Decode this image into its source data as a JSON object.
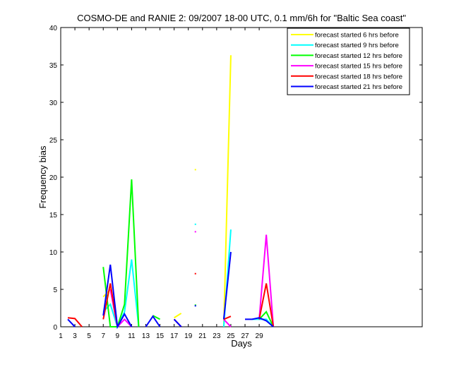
{
  "chart_data": {
    "type": "line",
    "title": "COSMO-DE and RANIE 2: 09/2007 18-00 UTC, 0.1 mm/6h for \"Baltic Sea coast\"",
    "xlabel": "Days",
    "ylabel": "Frequency bias",
    "xlim": [
      1,
      52
    ],
    "ylim": [
      0,
      40
    ],
    "xticks": [
      1,
      3,
      5,
      7,
      9,
      11,
      13,
      15,
      17,
      19,
      21,
      23,
      25,
      27,
      29
    ],
    "yticks": [
      0,
      5,
      10,
      15,
      20,
      25,
      30,
      35,
      40
    ],
    "grid": false,
    "legend_position": "top-right",
    "series": [
      {
        "name": "forecast started 6 hrs before",
        "color": "#ffff00",
        "points": [
          [
            7,
            4
          ],
          [
            8,
            5
          ],
          [
            9,
            0
          ],
          null,
          [
            17,
            1.2
          ],
          [
            18,
            1.8
          ],
          null,
          [
            20,
            21
          ],
          null,
          [
            24,
            0
          ],
          [
            25,
            36.3
          ]
        ]
      },
      {
        "name": "forecast started 9 hrs before",
        "color": "#00ffff",
        "points": [
          [
            7,
            2
          ],
          [
            8,
            3
          ],
          [
            9,
            0
          ],
          [
            10,
            2
          ],
          [
            11,
            9
          ],
          [
            12,
            0
          ],
          null,
          [
            20,
            13.7
          ],
          null,
          [
            24,
            0
          ],
          [
            25,
            13
          ],
          null,
          [
            28,
            1
          ],
          [
            29,
            1
          ],
          [
            30,
            1
          ],
          [
            31,
            0
          ]
        ]
      },
      {
        "name": "forecast started 12 hrs before",
        "color": "#00ff00",
        "points": [
          [
            7,
            8
          ],
          [
            8,
            0
          ],
          [
            9,
            0
          ],
          [
            10,
            3
          ],
          [
            11,
            19.7
          ],
          [
            12,
            0
          ],
          null,
          [
            14,
            1.5
          ],
          [
            15,
            1
          ],
          null,
          [
            20,
            2.9
          ],
          null,
          [
            29,
            1
          ],
          [
            30,
            2
          ],
          [
            31,
            0
          ]
        ]
      },
      {
        "name": "forecast started 15 hrs before",
        "color": "#ff00ff",
        "points": [
          [
            8,
            5
          ],
          [
            9,
            0
          ],
          [
            10,
            1
          ],
          [
            11,
            0
          ],
          null,
          [
            20,
            12.7
          ],
          null,
          [
            24,
            1
          ],
          [
            25,
            0
          ],
          null,
          [
            29,
            1
          ],
          [
            30,
            12.3
          ],
          [
            31,
            0
          ]
        ]
      },
      {
        "name": "forecast started 18 hrs before",
        "color": "#ff0000",
        "points": [
          [
            2,
            1.2
          ],
          [
            3,
            1.1
          ],
          [
            4,
            0
          ],
          null,
          [
            7,
            1
          ],
          [
            8,
            5.8
          ],
          [
            9,
            0
          ],
          null,
          [
            17,
            1
          ],
          [
            18,
            0
          ],
          null,
          [
            20,
            7.1
          ],
          null,
          [
            24,
            1
          ],
          [
            25,
            1.4
          ],
          null,
          [
            29,
            1
          ],
          [
            30,
            5.8
          ],
          [
            31,
            0
          ]
        ]
      },
      {
        "name": "forecast started 21 hrs before",
        "color": "#0000ff",
        "points": [
          [
            2,
            1
          ],
          [
            3,
            0
          ],
          null,
          [
            7,
            1.5
          ],
          [
            8,
            8.3
          ],
          [
            9,
            0
          ],
          [
            10,
            1.7
          ],
          [
            11,
            0
          ],
          null,
          [
            13,
            0
          ],
          [
            14,
            1.4
          ],
          [
            15,
            0
          ],
          null,
          [
            17,
            1
          ],
          [
            18,
            0
          ],
          null,
          [
            20,
            2.8
          ],
          null,
          [
            24,
            1
          ],
          [
            25,
            10
          ],
          null,
          [
            27,
            1
          ],
          [
            28,
            1
          ],
          [
            29,
            1.2
          ],
          [
            30,
            0.8
          ],
          [
            31,
            0
          ]
        ]
      }
    ]
  }
}
